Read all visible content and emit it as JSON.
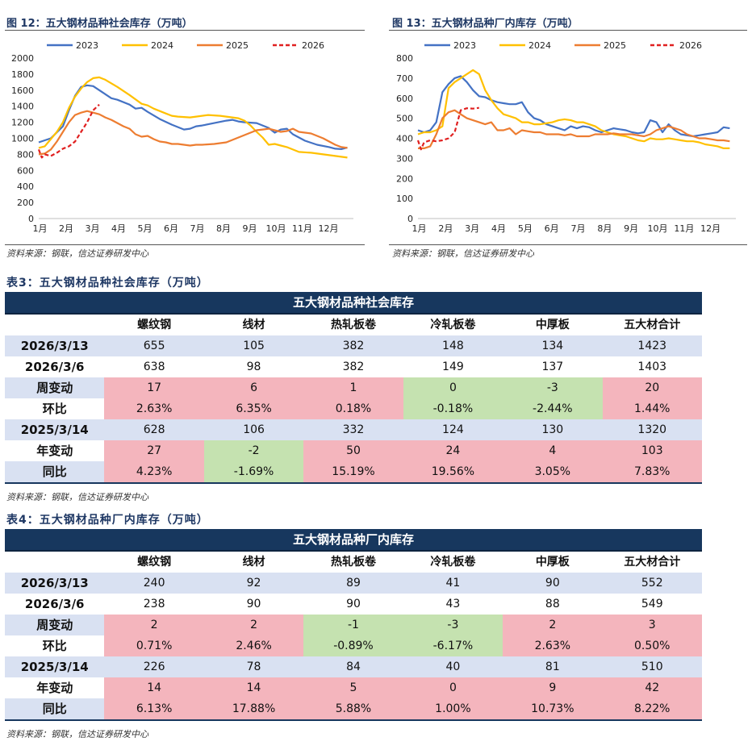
{
  "fig12": {
    "title": "图 12：五大钢材品种社会库存（万吨）",
    "source": "资料来源：钢联，信达证券研发中心"
  },
  "fig13": {
    "title": "图 13：五大钢材品种厂内库存（万吨）",
    "source": "资料来源：钢联，信达证券研发中心"
  },
  "chart_data": [
    {
      "type": "line",
      "title": "五大钢材品种社会库存（万吨）",
      "ylim": [
        0,
        2000
      ],
      "yticks": [
        "0",
        "200",
        "400",
        "600",
        "800",
        "1000",
        "1200",
        "1400",
        "1600",
        "1800",
        "2000"
      ],
      "xticks": [
        "1月",
        "2月",
        "3月",
        "4月",
        "5月",
        "6月",
        "7月",
        "8月",
        "9月",
        "10月",
        "11月",
        "12月"
      ],
      "x_unit": "week",
      "x_range": [
        1,
        53
      ],
      "series": [
        {
          "name": "2023",
          "color": "#4472c4",
          "dash": false,
          "x": [
            1,
            3,
            5,
            6,
            7,
            8,
            9,
            10,
            11,
            12,
            13,
            14,
            16,
            17,
            18,
            19,
            21,
            23,
            25,
            26,
            27,
            28,
            30,
            32,
            33,
            34,
            35,
            37,
            39,
            40,
            41,
            42,
            43,
            45,
            47,
            49,
            50,
            51,
            52
          ],
          "y": [
            950,
            1000,
            1150,
            1350,
            1530,
            1640,
            1660,
            1650,
            1600,
            1550,
            1500,
            1480,
            1420,
            1370,
            1380,
            1330,
            1240,
            1170,
            1110,
            1120,
            1150,
            1160,
            1190,
            1220,
            1230,
            1210,
            1200,
            1190,
            1130,
            1070,
            1110,
            1120,
            1050,
            970,
            920,
            890,
            870,
            865,
            885
          ]
        },
        {
          "name": "2024",
          "color": "#ffc000",
          "dash": false,
          "x": [
            1,
            2,
            3,
            4,
            5,
            6,
            7,
            8,
            9,
            10,
            11,
            12,
            14,
            16,
            18,
            19,
            20,
            22,
            23,
            24,
            26,
            27,
            29,
            31,
            32,
            33,
            34,
            35,
            36,
            37,
            38,
            39,
            40,
            41,
            42,
            44,
            46,
            48,
            50,
            52
          ],
          "y": [
            880,
            900,
            990,
            1080,
            1200,
            1380,
            1520,
            1620,
            1700,
            1750,
            1760,
            1730,
            1640,
            1540,
            1430,
            1410,
            1370,
            1310,
            1280,
            1270,
            1260,
            1270,
            1290,
            1280,
            1270,
            1260,
            1250,
            1220,
            1160,
            1080,
            1010,
            920,
            930,
            910,
            890,
            830,
            820,
            800,
            780,
            760
          ]
        },
        {
          "name": "2025",
          "color": "#ed7d31",
          "dash": false,
          "x": [
            1,
            2,
            3,
            4,
            5,
            6,
            7,
            8,
            9,
            10,
            11,
            12,
            13,
            14,
            15,
            16,
            17,
            18,
            19,
            20,
            21,
            22,
            23,
            24,
            25,
            26,
            27,
            28,
            29,
            30,
            31,
            32,
            33,
            34,
            35,
            36,
            37,
            38,
            39,
            40,
            41,
            42,
            43,
            44,
            45,
            46,
            47,
            48,
            49,
            50,
            51,
            52
          ],
          "y": [
            800,
            810,
            860,
            960,
            1080,
            1200,
            1290,
            1320,
            1340,
            1320,
            1300,
            1260,
            1230,
            1190,
            1150,
            1120,
            1050,
            1020,
            1030,
            990,
            960,
            950,
            930,
            930,
            920,
            910,
            920,
            920,
            925,
            930,
            940,
            950,
            980,
            1010,
            1040,
            1070,
            1100,
            1110,
            1120,
            1100,
            1080,
            1090,
            1120,
            1080,
            1070,
            1060,
            1030,
            1000,
            960,
            920,
            890,
            880
          ]
        },
        {
          "name": "2026",
          "color": "#e02020",
          "dash": true,
          "x": [
            1,
            1.5,
            2,
            3,
            4,
            5,
            6,
            7,
            8,
            9,
            10,
            11
          ],
          "y": [
            860,
            760,
            800,
            780,
            820,
            870,
            900,
            960,
            1080,
            1200,
            1350,
            1420
          ]
        }
      ]
    },
    {
      "type": "line",
      "title": "五大钢材品种厂内库存（万吨）",
      "ylim": [
        0,
        800
      ],
      "yticks": [
        "0",
        "100",
        "200",
        "300",
        "400",
        "500",
        "600",
        "700",
        "800"
      ],
      "xticks": [
        "1月",
        "2月",
        "3月",
        "4月",
        "5月",
        "6月",
        "7月",
        "8月",
        "9月",
        "10月",
        "11月",
        "12月"
      ],
      "x_unit": "week",
      "x_range": [
        1,
        53
      ],
      "series": [
        {
          "name": "2023",
          "color": "#4472c4",
          "dash": false,
          "x": [
            1,
            2,
            3,
            4,
            5,
            6,
            7,
            8,
            9,
            10,
            11,
            12,
            13,
            14,
            15,
            16,
            17,
            18,
            19,
            20,
            21,
            22,
            23,
            24,
            25,
            26,
            27,
            28,
            29,
            30,
            31,
            32,
            33,
            34,
            35,
            36,
            37,
            38,
            39,
            40,
            41,
            42,
            43,
            44,
            45,
            46,
            47,
            48,
            49,
            50,
            51,
            52
          ],
          "y": [
            440,
            430,
            440,
            480,
            630,
            670,
            700,
            710,
            680,
            640,
            610,
            605,
            590,
            580,
            575,
            570,
            570,
            580,
            530,
            500,
            490,
            470,
            460,
            450,
            440,
            460,
            450,
            460,
            455,
            440,
            430,
            440,
            450,
            445,
            440,
            430,
            425,
            430,
            490,
            480,
            430,
            470,
            440,
            420,
            415,
            410,
            415,
            420,
            425,
            430,
            455,
            450
          ]
        },
        {
          "name": "2024",
          "color": "#ffc000",
          "dash": false,
          "x": [
            1,
            2,
            3,
            4,
            5,
            6,
            7,
            8,
            9,
            10,
            11,
            12,
            13,
            14,
            15,
            16,
            17,
            18,
            19,
            20,
            21,
            22,
            23,
            24,
            25,
            26,
            27,
            28,
            29,
            30,
            31,
            32,
            33,
            34,
            35,
            36,
            37,
            38,
            39,
            40,
            41,
            42,
            43,
            44,
            45,
            46,
            47,
            48,
            49,
            50,
            51,
            52
          ],
          "y": [
            420,
            430,
            430,
            440,
            460,
            650,
            680,
            700,
            720,
            740,
            720,
            640,
            590,
            550,
            520,
            510,
            500,
            480,
            480,
            470,
            470,
            475,
            480,
            490,
            495,
            490,
            480,
            480,
            470,
            460,
            440,
            430,
            420,
            415,
            410,
            400,
            390,
            385,
            400,
            395,
            395,
            400,
            395,
            390,
            385,
            385,
            380,
            370,
            365,
            360,
            350,
            350
          ]
        },
        {
          "name": "2025",
          "color": "#ed7d31",
          "dash": false,
          "x": [
            1,
            2,
            3,
            4,
            5,
            6,
            7,
            8,
            9,
            10,
            11,
            12,
            13,
            14,
            15,
            16,
            17,
            18,
            19,
            20,
            21,
            22,
            23,
            24,
            25,
            26,
            27,
            28,
            29,
            30,
            31,
            32,
            33,
            34,
            35,
            36,
            37,
            38,
            39,
            40,
            41,
            42,
            43,
            44,
            45,
            46,
            47,
            48,
            49,
            50,
            51,
            52
          ],
          "y": [
            350,
            350,
            360,
            420,
            500,
            530,
            540,
            520,
            500,
            490,
            480,
            470,
            480,
            440,
            440,
            450,
            420,
            440,
            435,
            430,
            430,
            420,
            420,
            420,
            415,
            420,
            410,
            410,
            410,
            420,
            420,
            420,
            425,
            420,
            420,
            420,
            415,
            410,
            420,
            440,
            450,
            460,
            450,
            440,
            420,
            410,
            400,
            400,
            395,
            390,
            390,
            385
          ]
        },
        {
          "name": "2026",
          "color": "#e02020",
          "dash": true,
          "x": [
            1,
            1.5,
            2,
            3,
            4,
            5,
            6,
            7,
            8,
            9,
            10,
            11
          ],
          "y": [
            390,
            345,
            380,
            390,
            385,
            390,
            400,
            430,
            540,
            550,
            548,
            552
          ]
        }
      ]
    }
  ],
  "table3": {
    "caption": "表3：五大钢材品种社会库存（万吨）",
    "header": "五大钢材品种社会库存",
    "columns": [
      "",
      "螺纹钢",
      "线材",
      "热轧板卷",
      "冷轧板卷",
      "中厚板",
      "五大材合计"
    ],
    "rows": [
      {
        "style": "blue",
        "cells": [
          "2026/3/13",
          "655",
          "105",
          "382",
          "148",
          "134",
          "1423"
        ]
      },
      {
        "style": "plain",
        "cells": [
          "2026/3/6",
          "638",
          "98",
          "382",
          "149",
          "137",
          "1403"
        ]
      },
      {
        "style": "blue",
        "cells": [
          "周变动",
          "17",
          "6",
          "1",
          "0",
          "-3",
          "20"
        ],
        "cellStyles": [
          "blue",
          "pink",
          "pink",
          "pink",
          "green",
          "green",
          "pink"
        ]
      },
      {
        "style": "plain",
        "cells": [
          "环比",
          "2.63%",
          "6.35%",
          "0.18%",
          "-0.18%",
          "-2.44%",
          "1.44%"
        ],
        "cellStyles": [
          "plain",
          "pink",
          "pink",
          "pink",
          "green",
          "green",
          "pink"
        ]
      },
      {
        "style": "blue",
        "cells": [
          "2025/3/14",
          "628",
          "106",
          "332",
          "124",
          "130",
          "1320"
        ]
      },
      {
        "style": "plain",
        "cells": [
          "年变动",
          "27",
          "-2",
          "50",
          "24",
          "4",
          "103"
        ],
        "cellStyles": [
          "plain",
          "pink",
          "green",
          "pink",
          "pink",
          "pink",
          "pink"
        ]
      },
      {
        "style": "blue",
        "cells": [
          "同比",
          "4.23%",
          "-1.69%",
          "15.19%",
          "19.56%",
          "3.05%",
          "7.83%"
        ],
        "cellStyles": [
          "blue",
          "pink",
          "green",
          "pink",
          "pink",
          "pink",
          "pink"
        ]
      }
    ],
    "source": "资料来源：钢联，信达证券研发中心"
  },
  "table4": {
    "caption": "表4：五大钢材品种厂内库存（万吨）",
    "header": "五大钢材品种厂内库存",
    "columns": [
      "",
      "螺纹钢",
      "线材",
      "热轧板卷",
      "冷轧板卷",
      "中厚板",
      "五大材合计"
    ],
    "rows": [
      {
        "style": "blue",
        "cells": [
          "2026/3/13",
          "240",
          "92",
          "89",
          "41",
          "90",
          "552"
        ]
      },
      {
        "style": "plain",
        "cells": [
          "2026/3/6",
          "238",
          "90",
          "90",
          "43",
          "88",
          "549"
        ]
      },
      {
        "style": "blue",
        "cells": [
          "周变动",
          "2",
          "2",
          "-1",
          "-3",
          "2",
          "3"
        ],
        "cellStyles": [
          "blue",
          "pink",
          "pink",
          "green",
          "green",
          "pink",
          "pink"
        ]
      },
      {
        "style": "plain",
        "cells": [
          "环比",
          "0.71%",
          "2.46%",
          "-0.89%",
          "-6.17%",
          "2.63%",
          "0.50%"
        ],
        "cellStyles": [
          "plain",
          "pink",
          "pink",
          "green",
          "green",
          "pink",
          "pink"
        ]
      },
      {
        "style": "blue",
        "cells": [
          "2025/3/14",
          "226",
          "78",
          "84",
          "40",
          "81",
          "510"
        ]
      },
      {
        "style": "plain",
        "cells": [
          "年变动",
          "14",
          "14",
          "5",
          "0",
          "9",
          "42"
        ],
        "cellStyles": [
          "plain",
          "pink",
          "pink",
          "pink",
          "pink",
          "pink",
          "pink"
        ]
      },
      {
        "style": "blue",
        "cells": [
          "同比",
          "6.13%",
          "17.88%",
          "5.88%",
          "1.00%",
          "10.73%",
          "8.22%"
        ],
        "cellStyles": [
          "blue",
          "pink",
          "pink",
          "pink",
          "pink",
          "pink",
          "pink"
        ]
      }
    ],
    "source": "资料来源：钢联，信达证券研发中心"
  }
}
